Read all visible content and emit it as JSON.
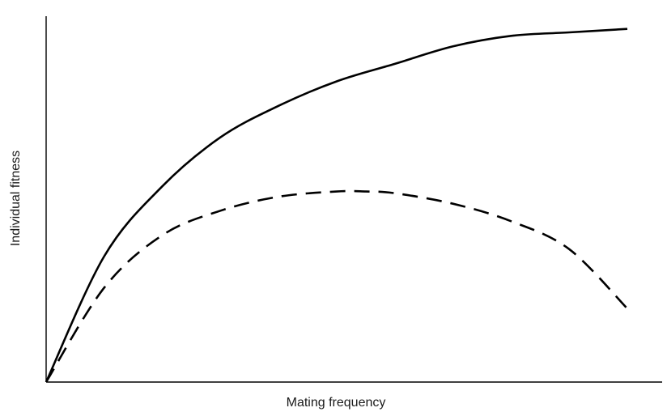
{
  "chart_data": {
    "type": "line",
    "title": "",
    "xlabel": "Mating frequency",
    "ylabel": "Individual fitness",
    "xlim": [
      0,
      1
    ],
    "ylim": [
      0,
      1
    ],
    "grid": false,
    "legend": "none",
    "series": [
      {
        "style": "solid",
        "color": "#000000",
        "x": [
          0,
          0.1,
          0.2,
          0.3,
          0.4,
          0.5,
          0.6,
          0.7,
          0.8,
          0.9,
          1.0
        ],
        "y": [
          0,
          0.36,
          0.56,
          0.7,
          0.79,
          0.86,
          0.91,
          0.96,
          0.99,
          1.0,
          1.01
        ]
      },
      {
        "style": "dashed",
        "color": "#000000",
        "x": [
          0,
          0.1,
          0.2,
          0.3,
          0.4,
          0.5,
          0.55,
          0.6,
          0.7,
          0.8,
          0.9,
          1.0
        ],
        "y": [
          0,
          0.27,
          0.42,
          0.49,
          0.53,
          0.545,
          0.545,
          0.54,
          0.51,
          0.46,
          0.38,
          0.21
        ]
      }
    ]
  }
}
